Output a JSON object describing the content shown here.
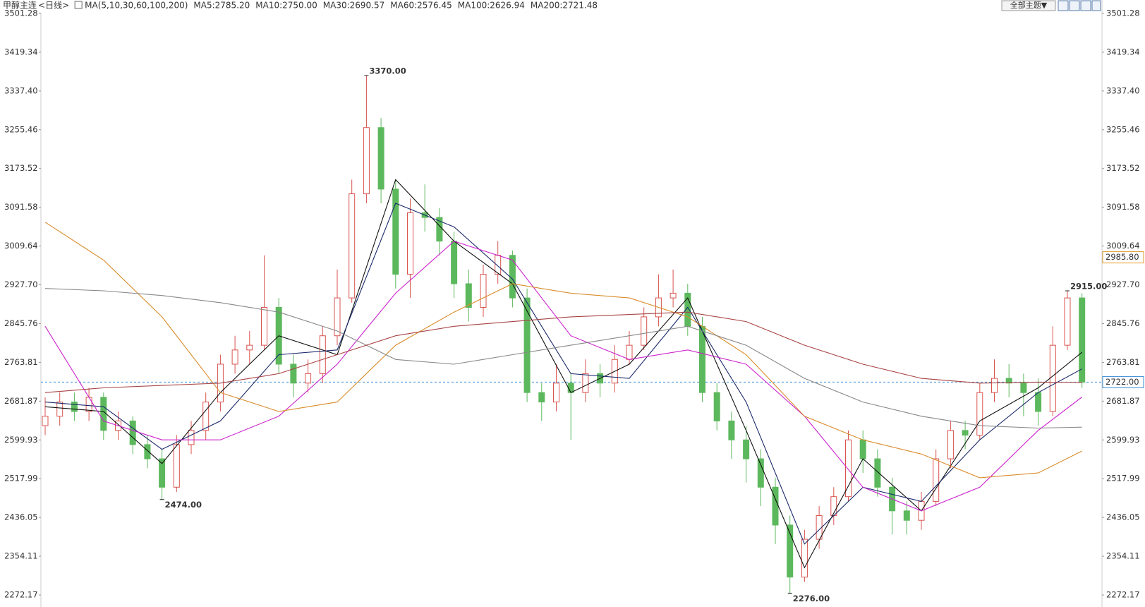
{
  "chart_data": {
    "type": "candlestick",
    "title": "甲醇主连",
    "period": "<日线>",
    "indicator": "MA(5,10,30,60,100,200)",
    "toolbar_button": "全部主题▼",
    "ylim": [
      2272.17,
      3501.28
    ],
    "yticks": [
      3501.28,
      3419.34,
      {
        "value": 3337.4,
        "label": "3337.40"
      },
      3255.46,
      3173.52,
      3091.58,
      3009.64,
      {
        "value": 2927.7,
        "label": "2927.70"
      },
      2845.76,
      2763.81,
      2681.87,
      2599.93,
      2517.99,
      2436.05,
      2354.11,
      2272.17
    ],
    "up_color": "#d9534f",
    "down_color": "#5cb85c",
    "candles": [
      [
        2630,
        2690,
        2610,
        2650
      ],
      [
        2650,
        2700,
        2630,
        2680
      ],
      [
        2680,
        2700,
        2640,
        2660
      ],
      [
        2660,
        2710,
        2640,
        2690
      ],
      [
        2690,
        2700,
        2600,
        2620
      ],
      [
        2620,
        2660,
        2600,
        2640
      ],
      [
        2640,
        2650,
        2570,
        2590
      ],
      [
        2590,
        2610,
        2540,
        2560
      ],
      [
        2560,
        2580,
        2474,
        2500
      ],
      [
        2500,
        2610,
        2490,
        2590
      ],
      [
        2590,
        2640,
        2570,
        2620
      ],
      [
        2620,
        2700,
        2600,
        2680
      ],
      [
        2680,
        2780,
        2660,
        2760
      ],
      [
        2760,
        2820,
        2740,
        2790
      ],
      [
        2790,
        2830,
        2760,
        2800
      ],
      [
        2800,
        2990,
        2790,
        2880
      ],
      [
        2880,
        2900,
        2740,
        2760
      ],
      [
        2760,
        2780,
        2690,
        2720
      ],
      [
        2720,
        2770,
        2700,
        2740
      ],
      [
        2740,
        2840,
        2720,
        2820
      ],
      [
        2820,
        2960,
        2800,
        2900
      ],
      [
        2900,
        3150,
        2890,
        3120
      ],
      [
        3120,
        3370,
        3100,
        3260
      ],
      [
        3260,
        3280,
        3100,
        3130
      ],
      [
        3130,
        3150,
        2920,
        2950
      ],
      [
        2950,
        3110,
        2900,
        3080
      ],
      [
        3080,
        3140,
        3040,
        3070
      ],
      [
        3070,
        3090,
        2990,
        3020
      ],
      [
        3020,
        3040,
        2900,
        2930
      ],
      [
        2930,
        2960,
        2850,
        2880
      ],
      [
        2880,
        2970,
        2860,
        2950
      ],
      [
        2950,
        3020,
        2930,
        2990
      ],
      [
        2990,
        3000,
        2880,
        2900
      ],
      [
        2900,
        2920,
        2680,
        2700
      ],
      [
        2700,
        2720,
        2640,
        2680
      ],
      [
        2680,
        2760,
        2660,
        2720
      ],
      [
        2720,
        2740,
        2600,
        2700
      ],
      [
        2700,
        2770,
        2680,
        2740
      ],
      [
        2740,
        2760,
        2690,
        2720
      ],
      [
        2720,
        2800,
        2700,
        2770
      ],
      [
        2770,
        2830,
        2760,
        2800
      ],
      [
        2800,
        2880,
        2790,
        2860
      ],
      [
        2860,
        2950,
        2840,
        2900
      ],
      [
        2900,
        2960,
        2880,
        2910
      ],
      [
        2910,
        2930,
        2820,
        2840
      ],
      [
        2840,
        2860,
        2680,
        2700
      ],
      [
        2700,
        2720,
        2620,
        2640
      ],
      [
        2640,
        2660,
        2560,
        2600
      ],
      [
        2600,
        2630,
        2510,
        2560
      ],
      [
        2560,
        2580,
        2460,
        2500
      ],
      [
        2500,
        2520,
        2380,
        2420
      ],
      [
        2420,
        2440,
        2276,
        2310
      ],
      [
        2310,
        2410,
        2300,
        2390
      ],
      [
        2390,
        2460,
        2370,
        2440
      ],
      [
        2440,
        2500,
        2420,
        2480
      ],
      [
        2480,
        2620,
        2470,
        2600
      ],
      [
        2600,
        2620,
        2530,
        2560
      ],
      [
        2560,
        2580,
        2480,
        2500
      ],
      [
        2500,
        2520,
        2400,
        2450
      ],
      [
        2450,
        2470,
        2400,
        2430
      ],
      [
        2430,
        2490,
        2410,
        2470
      ],
      [
        2470,
        2580,
        2460,
        2560
      ],
      [
        2560,
        2640,
        2540,
        2620
      ],
      [
        2620,
        2640,
        2580,
        2610
      ],
      [
        2610,
        2720,
        2600,
        2700
      ],
      [
        2700,
        2770,
        2680,
        2730
      ],
      [
        2730,
        2760,
        2690,
        2720
      ],
      [
        2720,
        2740,
        2650,
        2700
      ],
      [
        2700,
        2730,
        2630,
        2660
      ],
      [
        2660,
        2840,
        2650,
        2800
      ],
      [
        2800,
        2915,
        2790,
        2900
      ],
      [
        2900,
        2910,
        2710,
        2722
      ]
    ],
    "series": [
      {
        "name": "MA5:2785.20",
        "color": "#111111",
        "x": [
          0,
          4,
          8,
          12,
          16,
          20,
          24,
          28,
          32,
          36,
          40,
          44,
          48,
          52,
          56,
          60,
          64,
          68,
          71
        ],
        "values": [
          2670,
          2660,
          2550,
          2700,
          2820,
          2780,
          3150,
          3020,
          2930,
          2700,
          2760,
          2900,
          2620,
          2330,
          2560,
          2450,
          2640,
          2710,
          2785.2
        ]
      },
      {
        "name": "MA10:2750.00",
        "color": "#1c2a6b",
        "x": [
          0,
          4,
          8,
          12,
          16,
          20,
          24,
          28,
          32,
          36,
          40,
          44,
          48,
          52,
          56,
          60,
          64,
          68,
          71
        ],
        "values": [
          2680,
          2670,
          2580,
          2640,
          2780,
          2790,
          3100,
          3050,
          2940,
          2740,
          2730,
          2880,
          2680,
          2380,
          2500,
          2470,
          2600,
          2700,
          2750
        ]
      },
      {
        "name": "MA30:2690.57",
        "color": "#cc22cc",
        "x": [
          0,
          4,
          8,
          12,
          16,
          20,
          24,
          28,
          32,
          36,
          40,
          44,
          48,
          52,
          56,
          60,
          64,
          68,
          71
        ],
        "values": [
          2840,
          2640,
          2600,
          2600,
          2650,
          2760,
          2910,
          3020,
          2980,
          2820,
          2770,
          2790,
          2760,
          2650,
          2500,
          2450,
          2500,
          2620,
          2690.57
        ]
      },
      {
        "name": "MA60:2576.45",
        "color": "#d98c2b",
        "x": [
          0,
          4,
          8,
          12,
          16,
          20,
          24,
          28,
          32,
          36,
          40,
          44,
          48,
          52,
          56,
          60,
          64,
          68,
          71
        ],
        "values": [
          3060,
          2980,
          2860,
          2700,
          2660,
          2680,
          2800,
          2870,
          2930,
          2910,
          2900,
          2860,
          2780,
          2650,
          2600,
          2570,
          2520,
          2530,
          2576.45
        ]
      },
      {
        "name": "MA100:2626.94",
        "color": "#888888",
        "x": [
          0,
          4,
          8,
          12,
          16,
          20,
          24,
          28,
          32,
          36,
          40,
          44,
          48,
          52,
          56,
          60,
          64,
          68,
          71
        ],
        "values": [
          2920,
          2915,
          2905,
          2890,
          2870,
          2830,
          2770,
          2760,
          2780,
          2800,
          2820,
          2840,
          2800,
          2730,
          2680,
          2650,
          2630,
          2625,
          2626.94
        ]
      },
      {
        "name": "MA200:2721.48",
        "color": "#a84444",
        "x": [
          0,
          4,
          8,
          12,
          16,
          20,
          24,
          28,
          32,
          36,
          40,
          44,
          48,
          52,
          56,
          60,
          64,
          68,
          71
        ],
        "values": [
          2700,
          2710,
          2715,
          2720,
          2740,
          2780,
          2820,
          2840,
          2850,
          2860,
          2865,
          2870,
          2850,
          2800,
          2760,
          2730,
          2720,
          2722,
          2721.48
        ]
      }
    ],
    "annotations": [
      {
        "value": 3370,
        "label": "3370.00"
      },
      {
        "value": 2474,
        "label": "2474.00"
      },
      {
        "value": 2276,
        "label": "2276.00"
      },
      {
        "value": 2915,
        "label": "2915.00"
      }
    ],
    "price_markers": [
      {
        "value": 2722,
        "label": "2722.00",
        "color": "#3a8fd6",
        "line": true
      },
      {
        "value": 2985.8,
        "label": "2985.80",
        "color": "#e39b2b",
        "line": false
      }
    ]
  }
}
